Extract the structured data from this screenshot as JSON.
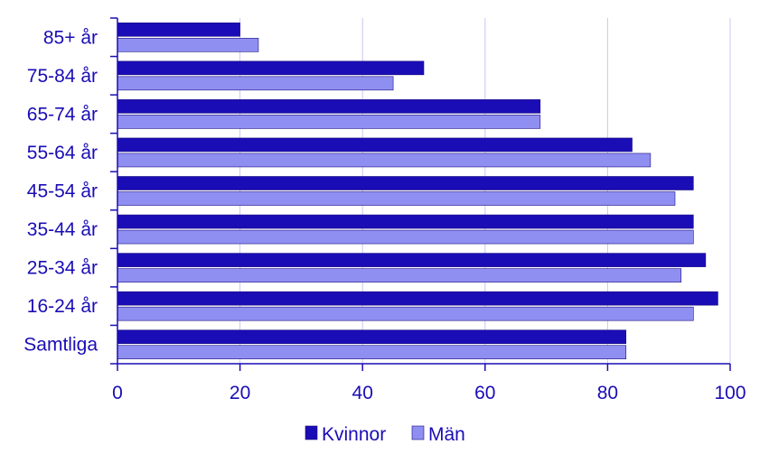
{
  "chart_data": {
    "type": "bar",
    "orientation": "horizontal",
    "categories": [
      "85+ år",
      "75-84 år",
      "65-74 år",
      "55-64 år",
      "45-54 år",
      "35-44 år",
      "25-34 år",
      "16-24 år",
      "Samtliga"
    ],
    "series": [
      {
        "name": "Kvinnor",
        "color": "#1a0db5",
        "values": [
          20,
          50,
          69,
          84,
          94,
          94,
          96,
          98,
          83
        ]
      },
      {
        "name": "Män",
        "color": "#8f8ff2",
        "values": [
          23,
          45,
          69,
          87,
          91,
          94,
          92,
          94,
          83
        ]
      }
    ],
    "xlim": [
      0,
      100
    ],
    "xticks": [
      "0",
      "20",
      "40",
      "60",
      "80",
      "100"
    ],
    "grid": "vertical",
    "legend_position": "bottom",
    "text_color": "#1a0db5",
    "grid_color": "#c8c8ee"
  }
}
